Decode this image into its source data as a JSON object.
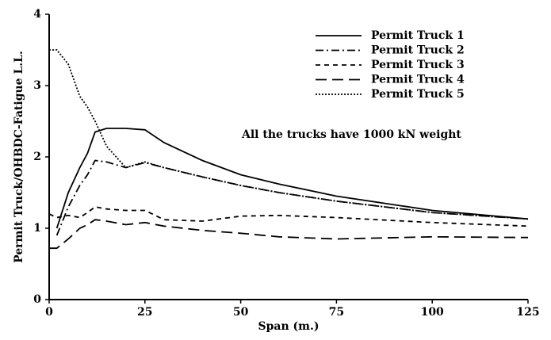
{
  "chart_data": {
    "type": "line",
    "annotation": "All the trucks have 1000 kN weight",
    "x_label": "Span (m.)",
    "y_label": "Permit Truck/OHBDC-Fatigue L.L.",
    "x": [
      0,
      2,
      5,
      8,
      10,
      12,
      15,
      20,
      25,
      30,
      40,
      50,
      60,
      75,
      100,
      125
    ],
    "xlim": [
      0,
      125
    ],
    "xticks": [
      0,
      25,
      50,
      75,
      100,
      125
    ],
    "ylim": [
      0,
      4
    ],
    "yticks": [
      0,
      1,
      2,
      3,
      4
    ],
    "legend": "upper right",
    "series": [
      {
        "name": "Permit Truck 1",
        "color": "#000000",
        "dash": "none",
        "values": [
          null,
          1.0,
          1.5,
          1.85,
          2.05,
          2.35,
          2.4,
          2.4,
          2.38,
          2.2,
          1.95,
          1.75,
          1.62,
          1.45,
          1.25,
          1.13
        ]
      },
      {
        "name": "Permit Truck 2",
        "color": "#000000",
        "dash": "10 4 2 4",
        "values": [
          null,
          0.9,
          1.3,
          1.6,
          1.75,
          1.95,
          1.93,
          1.85,
          1.92,
          1.85,
          1.72,
          1.6,
          1.5,
          1.38,
          1.22,
          1.13
        ]
      },
      {
        "name": "Permit Truck 3",
        "color": "#000000",
        "dash": "6 5",
        "values": [
          1.2,
          1.15,
          1.18,
          1.15,
          1.22,
          1.3,
          1.27,
          1.25,
          1.25,
          1.12,
          1.1,
          1.17,
          1.18,
          1.15,
          1.08,
          1.03
        ]
      },
      {
        "name": "Permit Truck 4",
        "color": "#000000",
        "dash": "14 7",
        "values": [
          0.72,
          0.72,
          0.85,
          1.0,
          1.05,
          1.12,
          1.1,
          1.05,
          1.08,
          1.03,
          0.97,
          0.93,
          0.88,
          0.85,
          0.88,
          0.87
        ]
      },
      {
        "name": "Permit Truck 5",
        "color": "#000000",
        "dash": "2 2",
        "values": [
          3.5,
          3.5,
          3.3,
          2.85,
          2.7,
          2.5,
          2.15,
          1.85,
          1.93,
          1.85,
          1.72,
          1.6,
          1.5,
          1.38,
          1.22,
          1.13
        ]
      }
    ]
  }
}
